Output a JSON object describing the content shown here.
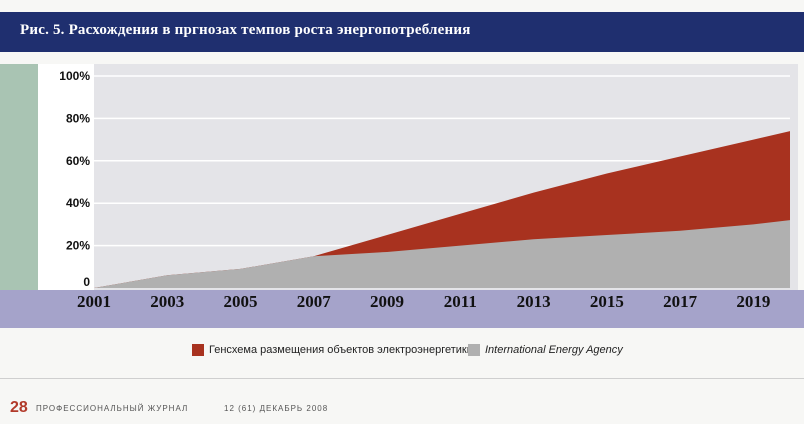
{
  "chart_data": {
    "type": "area",
    "title": "Рис. 5. Расхождения в пргнозах темпов роста энергопотребления",
    "x": [
      2001,
      2003,
      2005,
      2007,
      2009,
      2011,
      2013,
      2015,
      2017,
      2019,
      2020
    ],
    "x_ticks": [
      "2001",
      "2003",
      "2005",
      "2007",
      "2009",
      "2011",
      "2013",
      "2015",
      "2017",
      "2019"
    ],
    "y_ticks": [
      "0",
      "20%",
      "40%",
      "60%",
      "80%",
      "100%"
    ],
    "ylim": [
      0,
      100
    ],
    "series": [
      {
        "name": "Генсхема размещения объектов электроэнергетики",
        "color": "#a8321f",
        "values": [
          0,
          6,
          9,
          15,
          25,
          35,
          45,
          54,
          62,
          70,
          74
        ]
      },
      {
        "name": "International Energy Agency",
        "color": "#b0b0b0",
        "values": [
          0,
          6,
          9,
          15,
          17,
          20,
          23,
          25,
          27,
          30,
          32
        ]
      }
    ],
    "grid": true,
    "legend_position": "bottom"
  },
  "footer": {
    "page_number": "28",
    "magazine": "ПРОФЕССИОНАЛЬНЫЙ ЖУРНАЛ",
    "issue": "12 (61) ДЕКАБРЬ 2008"
  }
}
